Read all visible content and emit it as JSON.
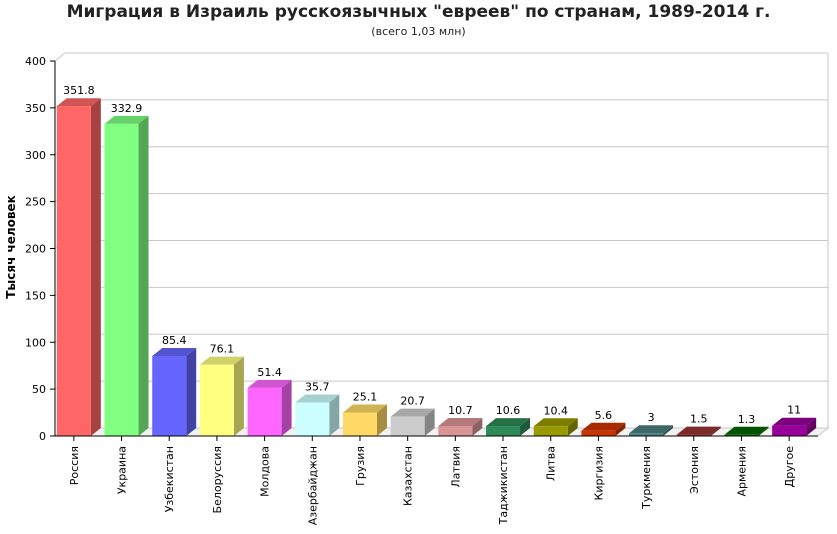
{
  "chart_data": {
    "type": "bar",
    "title": "Миграция в Израиль русскоязычных \"евреев\" по странам, 1989-2014 г.",
    "subtitle": "(всего 1,03 млн)",
    "xlabel": "",
    "ylabel": "Тысяч человек",
    "ylim": [
      0,
      400
    ],
    "yticks": [
      "0",
      "50",
      "100",
      "150",
      "200",
      "250",
      "300",
      "350",
      "400"
    ],
    "grid": true,
    "categories": [
      "Россия",
      "Украина",
      "Узбекистан",
      "Белоруссия",
      "Молдова",
      "Азербайджан",
      "Грузия",
      "Казахстан",
      "Латвия",
      "Таджикистан",
      "Литва",
      "Киргизия",
      "Туркмения",
      "Эстония",
      "Армения",
      "Другое"
    ],
    "values": [
      351.8,
      332.9,
      85.4,
      76.1,
      51.4,
      35.7,
      25.1,
      20.7,
      10.7,
      10.6,
      10.4,
      5.6,
      3,
      1.5,
      1.3,
      11
    ],
    "value_labels": [
      "351.8",
      "332.9",
      "85.4",
      "76.1",
      "51.4",
      "35.7",
      "25.1",
      "20.7",
      "10.7",
      "10.6",
      "10.4",
      "5.6",
      "3",
      "1.5",
      "1.3",
      "11"
    ],
    "colors": [
      "#ff6666",
      "#80ff80",
      "#6666ff",
      "#ffff80",
      "#ff66ff",
      "#ccffff",
      "#ffd966",
      "#cccccc",
      "#d99595",
      "#2e8b57",
      "#999900",
      "#cc3300",
      "#4d8080",
      "#993333",
      "#006600",
      "#990099"
    ]
  }
}
